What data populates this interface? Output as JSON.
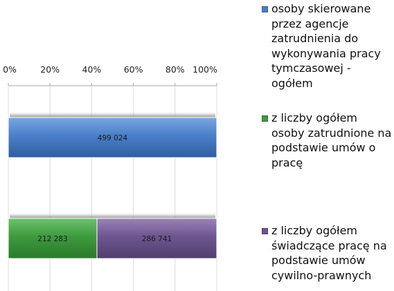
{
  "chart_data": {
    "type": "bar",
    "stacked": "percent",
    "orientation": "horizontal",
    "axis_position": "top",
    "xlim": [
      0,
      100
    ],
    "x_ticks": [
      "0%",
      "20%",
      "40%",
      "60%",
      "80%",
      "100%"
    ],
    "grid": true,
    "legend_position": "right",
    "bars": [
      {
        "segments": [
          {
            "series": 0,
            "value": 499024,
            "label": "499 024"
          }
        ]
      },
      {
        "segments": [
          {
            "series": 1,
            "value": 212283,
            "label": "212 283"
          },
          {
            "series": 2,
            "value": 286741,
            "label": "286 741"
          }
        ]
      }
    ],
    "series": [
      {
        "name": "osoby skierowane przez agencje zatrudnienia do wykonywania pracy tymczasowej - ogółem",
        "color": "#4a7fc9"
      },
      {
        "name": "z liczby ogółem osoby zatrudnione na podstawie umów o pracę",
        "color": "#3e9a3e"
      },
      {
        "name": "z liczby ogółem świadczące pracę na podstawie umów cywilno-prawnych",
        "color": "#6e5590"
      }
    ]
  }
}
